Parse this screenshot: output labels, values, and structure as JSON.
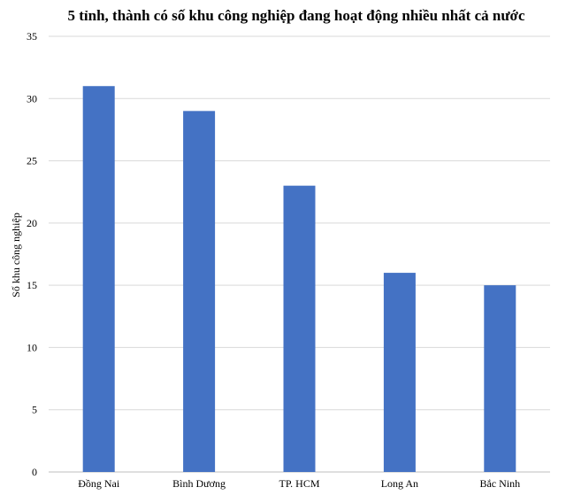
{
  "chart_data": {
    "type": "bar",
    "title": "5 tỉnh, thành có số khu công nghiệp đang hoạt động nhiều nhất cả nước",
    "xlabel": "",
    "ylabel": "Số khu công nghiệp",
    "categories": [
      "Đồng Nai",
      "Bình Dương",
      "TP. HCM",
      "Long An",
      "Bắc Ninh"
    ],
    "values": [
      31,
      29,
      23,
      16,
      15
    ],
    "ylim": [
      0,
      35
    ],
    "yticks": [
      0,
      5,
      10,
      15,
      20,
      25,
      30,
      35
    ],
    "grid": true,
    "legend": "none",
    "bar_color": "#4472c4"
  }
}
